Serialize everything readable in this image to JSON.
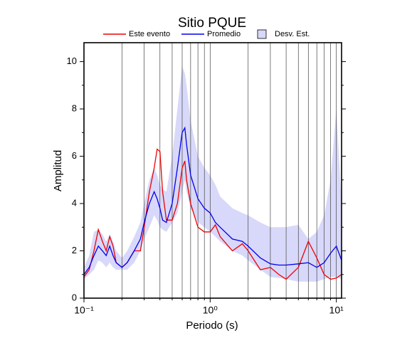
{
  "chart_data": {
    "type": "line",
    "title": "Sitio PQUE",
    "xlabel": "Periodo (s)",
    "ylabel": "Amplitud",
    "xscale": "log",
    "xlim": [
      0.1,
      11.0
    ],
    "ylim": [
      0,
      10.8
    ],
    "xticks": [
      {
        "value": 0.1,
        "label": "10⁻¹"
      },
      {
        "value": 1,
        "label": "10⁰"
      },
      {
        "value": 10,
        "label": "10¹"
      }
    ],
    "xminorticks": [
      0.2,
      0.3,
      0.4,
      0.5,
      0.6,
      0.7,
      0.8,
      0.9,
      2,
      3,
      4,
      5,
      6,
      7,
      8,
      9
    ],
    "yticks": [
      0,
      2,
      4,
      6,
      8,
      10
    ],
    "yminorticks": [
      1,
      3,
      5,
      7,
      9
    ],
    "xgrid": true,
    "x": [
      0.1,
      0.11,
      0.12,
      0.13,
      0.14,
      0.15,
      0.16,
      0.17,
      0.18,
      0.2,
      0.22,
      0.25,
      0.28,
      0.3,
      0.33,
      0.36,
      0.38,
      0.4,
      0.42,
      0.45,
      0.5,
      0.55,
      0.6,
      0.63,
      0.65,
      0.7,
      0.8,
      0.9,
      1.0,
      1.1,
      1.2,
      1.5,
      1.8,
      2,
      2.5,
      3,
      3.5,
      4,
      5,
      6,
      7,
      8,
      9,
      10,
      11
    ],
    "band": {
      "name": "Desv. Est.",
      "color": "#d8d8fa",
      "edge": "#000080",
      "upper": [
        1.3,
        1.8,
        2.8,
        2.9,
        2.7,
        2.4,
        2.7,
        2.4,
        2.0,
        1.7,
        2.0,
        2.6,
        3.2,
        4.0,
        5.0,
        5.5,
        5.2,
        4.8,
        4.6,
        4.5,
        6.0,
        8.0,
        9.8,
        9.5,
        9.0,
        7.5,
        6.0,
        5.5,
        5.2,
        4.8,
        4.3,
        3.8,
        3.6,
        3.5,
        3.2,
        3.0,
        3.0,
        3.0,
        3.1,
        2.5,
        2.8,
        3.5,
        5.0,
        8.0,
        4.0
      ],
      "lower": [
        0.8,
        1.0,
        1.2,
        1.6,
        1.5,
        1.3,
        1.5,
        1.3,
        1.2,
        1.2,
        1.2,
        1.5,
        2.0,
        2.5,
        3.0,
        3.5,
        3.3,
        3.0,
        2.9,
        2.8,
        3.2,
        3.6,
        4.5,
        5.0,
        4.5,
        3.8,
        3.2,
        3.0,
        2.8,
        2.6,
        2.4,
        2.0,
        1.8,
        1.6,
        1.2,
        0.9,
        0.85,
        0.8,
        0.7,
        0.7,
        0.7,
        0.8,
        0.9,
        0.9,
        0.8
      ]
    },
    "series": [
      {
        "name": "Este evento",
        "color": "#ee0000",
        "values": [
          0.9,
          1.2,
          2.0,
          2.9,
          2.4,
          2.0,
          2.6,
          2.2,
          1.5,
          1.3,
          1.5,
          2.0,
          2.0,
          3.0,
          4.5,
          5.5,
          6.3,
          6.2,
          4.5,
          3.3,
          3.3,
          4.0,
          5.5,
          5.8,
          5.0,
          4.0,
          3.0,
          2.8,
          2.8,
          3.1,
          2.6,
          2.0,
          2.3,
          2.0,
          1.2,
          1.3,
          1.0,
          0.8,
          1.3,
          2.4,
          1.7,
          1.0,
          0.8,
          0.85,
          1.0
        ]
      },
      {
        "name": "Promedio",
        "color": "#0000ee",
        "values": [
          1.0,
          1.3,
          1.8,
          2.2,
          2.0,
          1.8,
          2.2,
          1.8,
          1.5,
          1.3,
          1.5,
          2.0,
          2.5,
          3.2,
          4.0,
          4.5,
          4.2,
          3.8,
          3.3,
          3.2,
          4.0,
          5.5,
          7.0,
          7.2,
          6.5,
          5.2,
          4.2,
          3.8,
          3.6,
          3.2,
          3.0,
          2.5,
          2.4,
          2.2,
          1.7,
          1.45,
          1.4,
          1.4,
          1.45,
          1.5,
          1.3,
          1.5,
          1.9,
          2.2,
          1.6
        ]
      }
    ]
  }
}
